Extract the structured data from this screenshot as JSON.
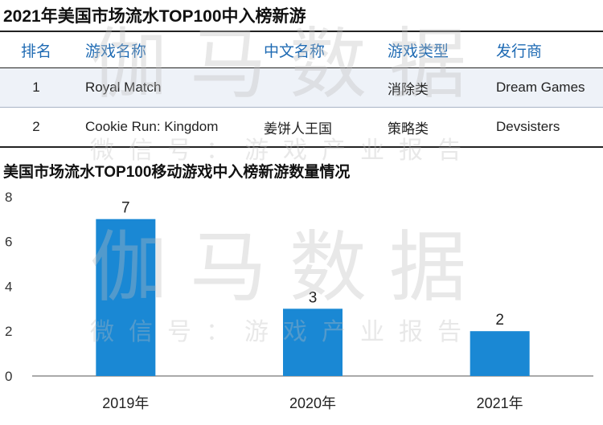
{
  "title": "2021年美国市场流水TOP100中入榜新游",
  "table": {
    "headers": [
      "排名",
      "游戏名称",
      "中文名称",
      "游戏类型",
      "发行商"
    ],
    "rows": [
      [
        "1",
        "Royal Match",
        "",
        "消除类",
        "Dream Games"
      ],
      [
        "2",
        "Cookie Run: Kingdom",
        "姜饼人王国",
        "策略类",
        "Devsisters"
      ]
    ]
  },
  "watermark": {
    "main": "伽马数据",
    "sub": "微信号：游戏产业报告"
  },
  "colors": {
    "accent": "#1e6ab3",
    "bar": "#1a88d4",
    "row_highlight": "#eef2f8"
  },
  "chart_data": {
    "type": "bar",
    "title": "美国市场流水TOP100移动游戏中入榜新游数量情况",
    "categories": [
      "2019年",
      "2020年",
      "2021年"
    ],
    "values": [
      7,
      3,
      2
    ],
    "ylim": [
      0,
      8
    ],
    "yticks": [
      0,
      2,
      4,
      6,
      8
    ],
    "xlabel": "",
    "ylabel": "",
    "grid": false,
    "data_labels": true
  }
}
